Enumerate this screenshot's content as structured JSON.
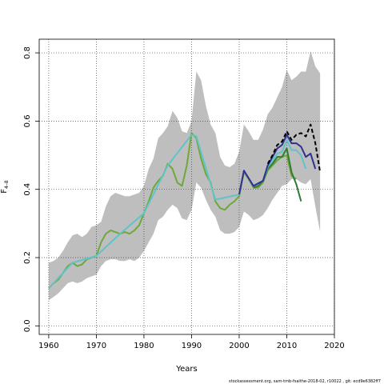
{
  "chart_data": {
    "type": "line",
    "xlabel": "Years",
    "ylabel": "F",
    "ylabel_sub": "4–8",
    "xlim": [
      1958,
      2020
    ],
    "ylim": [
      -0.025,
      0.84
    ],
    "x_ticks": [
      1960,
      1970,
      1980,
      1990,
      2000,
      2010,
      2020
    ],
    "x_tick_labels": [
      "1960",
      "1970",
      "1980",
      "1990",
      "2000",
      "2010",
      "2020"
    ],
    "y_ticks": [
      0.0,
      0.2,
      0.4,
      0.6,
      0.8
    ],
    "y_tick_labels": [
      "0.0",
      "0.2",
      "0.4",
      "0.6",
      "0.8"
    ],
    "grid": true,
    "grid_style": "dotted",
    "confidence_band": {
      "years": [
        1960,
        1961,
        1962,
        1963,
        1964,
        1965,
        1966,
        1967,
        1968,
        1969,
        1970,
        1971,
        1972,
        1973,
        1974,
        1975,
        1976,
        1977,
        1978,
        1979,
        1980,
        1981,
        1982,
        1983,
        1984,
        1985,
        1986,
        1987,
        1988,
        1989,
        1990,
        1991,
        1992,
        1993,
        1994,
        1995,
        1996,
        1997,
        1998,
        1999,
        2000,
        2001,
        2002,
        2003,
        2004,
        2005,
        2006,
        2007,
        2008,
        2009,
        2010,
        2011,
        2012,
        2013,
        2014,
        2015,
        2016,
        2017
      ],
      "lower": [
        0.075,
        0.085,
        0.095,
        0.11,
        0.125,
        0.13,
        0.125,
        0.13,
        0.14,
        0.145,
        0.15,
        0.175,
        0.19,
        0.195,
        0.195,
        0.19,
        0.19,
        0.195,
        0.19,
        0.2,
        0.22,
        0.245,
        0.27,
        0.31,
        0.32,
        0.34,
        0.355,
        0.345,
        0.315,
        0.31,
        0.34,
        0.42,
        0.405,
        0.37,
        0.34,
        0.32,
        0.28,
        0.27,
        0.27,
        0.275,
        0.29,
        0.335,
        0.325,
        0.31,
        0.315,
        0.325,
        0.345,
        0.37,
        0.39,
        0.41,
        0.415,
        0.43,
        0.43,
        0.42,
        0.415,
        0.43,
        0.35,
        0.275
      ],
      "upper": [
        0.185,
        0.19,
        0.2,
        0.22,
        0.245,
        0.265,
        0.27,
        0.26,
        0.27,
        0.29,
        0.295,
        0.305,
        0.35,
        0.38,
        0.39,
        0.385,
        0.38,
        0.38,
        0.385,
        0.39,
        0.41,
        0.46,
        0.49,
        0.55,
        0.565,
        0.585,
        0.63,
        0.61,
        0.57,
        0.565,
        0.6,
        0.745,
        0.72,
        0.645,
        0.59,
        0.565,
        0.495,
        0.47,
        0.465,
        0.475,
        0.51,
        0.59,
        0.57,
        0.545,
        0.545,
        0.575,
        0.62,
        0.64,
        0.67,
        0.7,
        0.75,
        0.72,
        0.73,
        0.745,
        0.745,
        0.805,
        0.76,
        0.74
      ],
      "color": "#bebebe"
    },
    "series": [
      {
        "color": "#6fa83a",
        "x": [
          1960,
          1961,
          1962,
          1963,
          1964,
          1965,
          1966,
          1967,
          1968,
          1969,
          1970,
          1971,
          1972,
          1973,
          1974,
          1975,
          1976,
          1977,
          1978,
          1979,
          1980,
          1981,
          1982,
          1983,
          1984,
          1985,
          1986,
          1987,
          1988,
          1989,
          1990,
          1991,
          1992,
          1993,
          1994,
          1995,
          1996,
          1997,
          1998,
          1999,
          2000,
          2001,
          2002,
          2003,
          2004,
          2005,
          2006,
          2007,
          2008,
          2009,
          2010,
          2011,
          2012
        ],
        "y": [
          0.11,
          0.125,
          0.135,
          0.155,
          0.175,
          0.185,
          0.175,
          0.18,
          0.195,
          0.2,
          0.205,
          0.245,
          0.27,
          0.28,
          0.275,
          0.27,
          0.275,
          0.27,
          0.28,
          0.295,
          0.33,
          0.365,
          0.405,
          0.425,
          0.44,
          0.475,
          0.46,
          0.42,
          0.41,
          0.47,
          0.565,
          0.55,
          0.49,
          0.445,
          0.42,
          0.365,
          0.345,
          0.34,
          0.355,
          0.365,
          0.38,
          0.45,
          0.43,
          0.405,
          0.405,
          0.42,
          0.455,
          0.47,
          0.485,
          0.495,
          0.5,
          0.44,
          0.43
        ]
      },
      {
        "color": "#2e7d32",
        "x": [
          2003,
          2004,
          2005,
          2006,
          2007,
          2008,
          2009,
          2010,
          2011,
          2012,
          2013
        ],
        "y": [
          0.405,
          0.41,
          0.425,
          0.46,
          0.475,
          0.495,
          0.495,
          0.52,
          0.45,
          0.415,
          0.365
        ]
      },
      {
        "color": "#5fc3c9",
        "x": [
          1960,
          1965,
          1970,
          1975,
          1980,
          1985,
          1990,
          1991,
          1995,
          2000,
          2001,
          2003,
          2005,
          2006,
          2007,
          2008,
          2009,
          2010,
          2011,
          2012,
          2013,
          2014
        ],
        "y": [
          0.11,
          0.185,
          0.205,
          0.27,
          0.33,
          0.47,
          0.56,
          0.555,
          0.37,
          0.385,
          0.455,
          0.41,
          0.425,
          0.465,
          0.485,
          0.505,
          0.51,
          0.545,
          0.515,
          0.515,
          0.5,
          0.46
        ]
      },
      {
        "color": "#303090",
        "x": [
          2000,
          2001,
          2003,
          2005,
          2006,
          2007,
          2008,
          2009,
          2010,
          2011,
          2012,
          2013,
          2014,
          2015,
          2016
        ],
        "y": [
          0.385,
          0.455,
          0.41,
          0.425,
          0.47,
          0.495,
          0.52,
          0.53,
          0.56,
          0.535,
          0.535,
          0.525,
          0.495,
          0.505,
          0.46
        ]
      },
      {
        "color": "#000000",
        "dashed": true,
        "x": [
          2006,
          2007,
          2008,
          2009,
          2010,
          2011,
          2012,
          2013,
          2014,
          2015,
          2016,
          2017
        ],
        "y": [
          0.475,
          0.5,
          0.53,
          0.54,
          0.57,
          0.545,
          0.56,
          0.565,
          0.555,
          0.59,
          0.535,
          0.45
        ]
      }
    ]
  },
  "footer": {
    "text": "stockassessment.org,  sam-tmb-fsaithe-2018-02,  r10022 ,  git:  ecd9e6382ff7"
  }
}
